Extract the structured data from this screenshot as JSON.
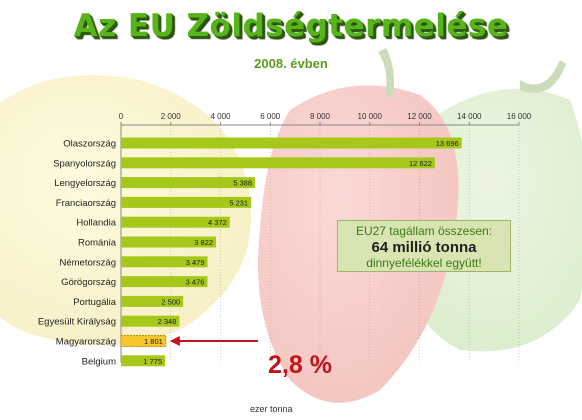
{
  "header": {
    "title": "Az EU Zöldségtermelése",
    "subtitle": "2008. évben"
  },
  "callout": {
    "line1": "EU27 tagállam összesen:",
    "line2": "64 millió tonna",
    "line3": "dinnyefélékkel együtt!"
  },
  "highlight": {
    "category": "Magyarország",
    "share_label": "2,8 %"
  },
  "colors": {
    "bar": "#a6c81a",
    "bar_highlight": "#f7c62c",
    "title": "#57b41a",
    "share": "#c4121a"
  },
  "chart_data": {
    "type": "bar",
    "orientation": "horizontal",
    "title": "Az EU Zöldségtermelése",
    "subtitle": "2008. évben",
    "xlabel": "ezer tonna",
    "ylabel": "",
    "xlim": [
      0,
      16000
    ],
    "ticks": [
      0,
      2000,
      4000,
      6000,
      8000,
      10000,
      12000,
      14000,
      16000
    ],
    "tick_labels": [
      "0",
      "2 000",
      "4 000",
      "6 000",
      "8 000",
      "10 000",
      "12 000",
      "14 000",
      "16 000"
    ],
    "axis_position": "top",
    "grid": true,
    "categories": [
      "Olaszország",
      "Spanyolország",
      "Lengyelország",
      "Franciaország",
      "Hollandia",
      "Románia",
      "Németország",
      "Görögország",
      "Portugália",
      "Egyesült Királyság",
      "Magyarország",
      "Belgium"
    ],
    "values": [
      13696,
      12622,
      5388,
      5231,
      4372,
      3822,
      3479,
      3476,
      2500,
      2348,
      1801,
      1775
    ],
    "value_labels": [
      "13 696",
      "12 622",
      "5 388",
      "5 231",
      "4 372",
      "3 822",
      "3 479",
      "3 476",
      "2 500",
      "2 348",
      "1 801",
      "1 775"
    ]
  }
}
